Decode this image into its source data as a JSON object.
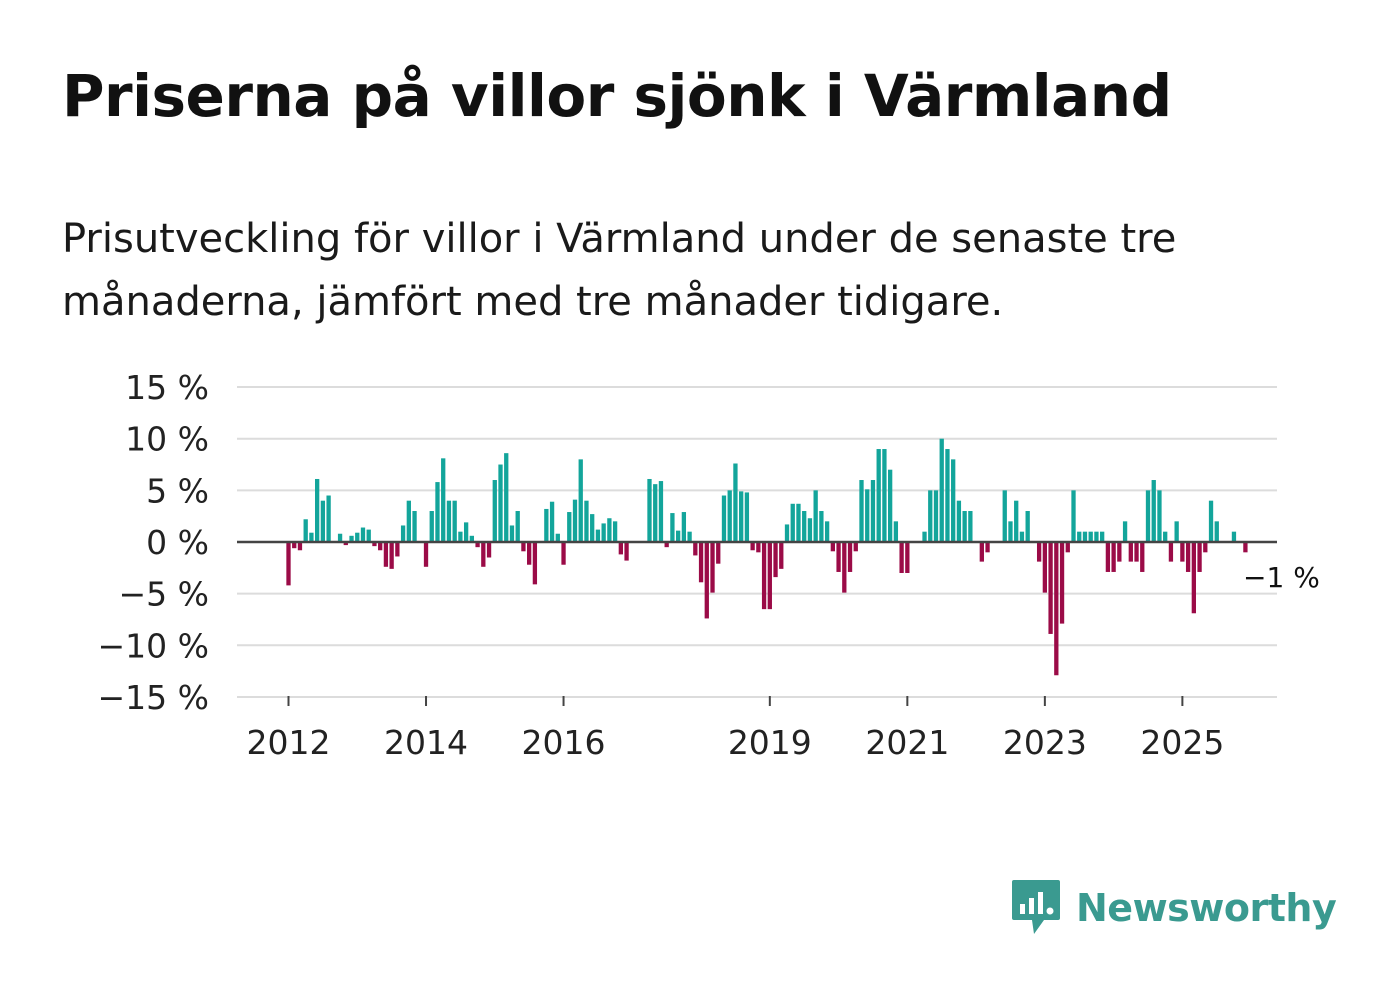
{
  "title": "Priserna på villor sjönk i Värmland",
  "subtitle": "Prisutveckling för villor i Värmland under de senaste tre månaderna, jämfört med tre månader tidigare.",
  "brand": "Newsworthy",
  "colors": {
    "positive": "#13a59b",
    "negative": "#9b0b47",
    "grid": "#dcdcdc",
    "zero": "#444444",
    "text": "#222222",
    "brand": "#3a9a90"
  },
  "chart_data": {
    "type": "bar",
    "ylim": [
      -15,
      15
    ],
    "yticks": [
      15,
      10,
      5,
      0,
      -5,
      -10,
      -15
    ],
    "ytick_labels": [
      "15 %",
      "10 %",
      "5 %",
      "0 %",
      "−5 %",
      "−10 %",
      "−15 %"
    ],
    "xtick_labels": [
      "2012",
      "2014",
      "2016",
      "2019",
      "2021",
      "2023",
      "2025"
    ],
    "xtick_index": [
      0,
      24,
      48,
      84,
      108,
      132,
      156
    ],
    "start": "2012-01",
    "last_label": "−1 %",
    "values": [
      -4.2,
      -0.6,
      -0.8,
      2.2,
      0.9,
      6.1,
      4.0,
      4.5,
      0,
      0.8,
      -0.3,
      0.6,
      0.9,
      1.4,
      1.2,
      -0.4,
      -0.8,
      -2.4,
      -2.6,
      -1.4,
      1.6,
      4.0,
      3.0,
      0,
      -2.4,
      3.0,
      5.8,
      8.1,
      4.0,
      4.0,
      1.0,
      1.9,
      0.6,
      -0.5,
      -2.4,
      -1.5,
      6.0,
      7.5,
      8.6,
      1.6,
      3.0,
      -0.9,
      -2.2,
      -4.1,
      0,
      3.2,
      3.9,
      0.8,
      -2.2,
      2.9,
      4.1,
      8.0,
      4.0,
      2.7,
      1.2,
      1.8,
      2.3,
      2.0,
      -1.2,
      -1.8,
      0,
      0,
      0,
      6.1,
      5.6,
      5.9,
      -0.5,
      2.8,
      1.1,
      2.9,
      1.0,
      -1.3,
      -3.9,
      -7.4,
      -4.9,
      -2.1,
      4.5,
      5.0,
      7.6,
      4.9,
      4.8,
      -0.8,
      -1.0,
      -6.5,
      -6.5,
      -3.4,
      -2.6,
      1.7,
      3.7,
      3.7,
      3.0,
      2.3,
      5.0,
      3.0,
      2.0,
      -0.9,
      -2.9,
      -4.9,
      -2.9,
      -0.9,
      6.0,
      5.1,
      6.0,
      9.0,
      9.0,
      7.0,
      2.0,
      -3.0,
      -3.0,
      0,
      0,
      1.0,
      5.0,
      5.0,
      10.0,
      9.0,
      8.0,
      4.0,
      3.0,
      3.0,
      0,
      -1.9,
      -1.0,
      0,
      0,
      5.0,
      2.0,
      4.0,
      1.0,
      3.0,
      0,
      -1.9,
      -4.9,
      -8.9,
      -12.9,
      -7.9,
      -1.0,
      5.0,
      1.0,
      1.0,
      1.0,
      1.0,
      1.0,
      -2.9,
      -2.9,
      -1.9,
      2.0,
      -1.9,
      -1.9,
      -2.9,
      5.0,
      6.0,
      5.0,
      1.0,
      -1.9,
      2.0,
      -1.9,
      -2.9,
      -6.9,
      -2.9,
      -1.0,
      4.0,
      2.0,
      0,
      0,
      1.0,
      0,
      -1.0
    ]
  }
}
